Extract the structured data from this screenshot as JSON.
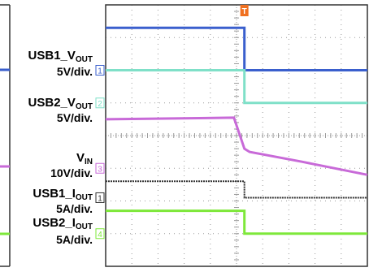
{
  "trigger_marker": "T",
  "channels": [
    {
      "id": "usb1_vout",
      "name_main": "USB1_V",
      "name_sub": "OUT",
      "scale": "5V/div.",
      "marker": "1",
      "color": "#3a5fcd"
    },
    {
      "id": "usb2_vout",
      "name_main": "USB2_V",
      "name_sub": "OUT",
      "scale": "5V/div.",
      "marker": "2",
      "color": "#7fe0c8"
    },
    {
      "id": "vin",
      "name_main": "V",
      "name_sub": "IN",
      "scale": "10V/div.",
      "marker": "3",
      "color": "#c86ad8"
    },
    {
      "id": "usb1_iout",
      "name_main": "USB1_I",
      "name_sub": "OUT",
      "scale": "5A/div.",
      "marker": "1",
      "color": "#333333"
    },
    {
      "id": "usb2_iout",
      "name_main": "USB2_I",
      "name_sub": "OUT",
      "scale": "5A/div.",
      "marker": "4",
      "color": "#7ee83a"
    }
  ],
  "colors": {
    "trigger": "#f07020",
    "grid": "#9a9a9a",
    "frame": "#333333"
  },
  "chart_data": {
    "type": "line",
    "title": "",
    "xlabel": "",
    "ylabel": "",
    "grid": true,
    "x_divisions": 10,
    "y_divisions": 8,
    "xlim": [
      0,
      10
    ],
    "ylim": [
      0,
      8
    ],
    "series": [
      {
        "name": "USB1_VOUT",
        "x": [
          0,
          5.3,
          5.3,
          10
        ],
        "y": [
          7.3,
          7.3,
          6.0,
          6.0
        ]
      },
      {
        "name": "USB2_VOUT",
        "x": [
          0,
          5.3,
          5.3,
          10
        ],
        "y": [
          6.0,
          6.0,
          5.0,
          5.0
        ]
      },
      {
        "name": "VIN",
        "x": [
          0,
          4.9,
          5.3,
          5.5,
          7.5,
          10
        ],
        "y": [
          4.5,
          4.55,
          3.6,
          3.5,
          3.2,
          2.8
        ]
      },
      {
        "name": "USB1_IOUT",
        "x": [
          0,
          5.3,
          5.3,
          10
        ],
        "y": [
          2.6,
          2.6,
          2.1,
          2.1
        ]
      },
      {
        "name": "USB2_IOUT",
        "x": [
          0,
          5.3,
          5.3,
          10
        ],
        "y": [
          1.7,
          1.7,
          1.0,
          1.0
        ]
      }
    ]
  }
}
